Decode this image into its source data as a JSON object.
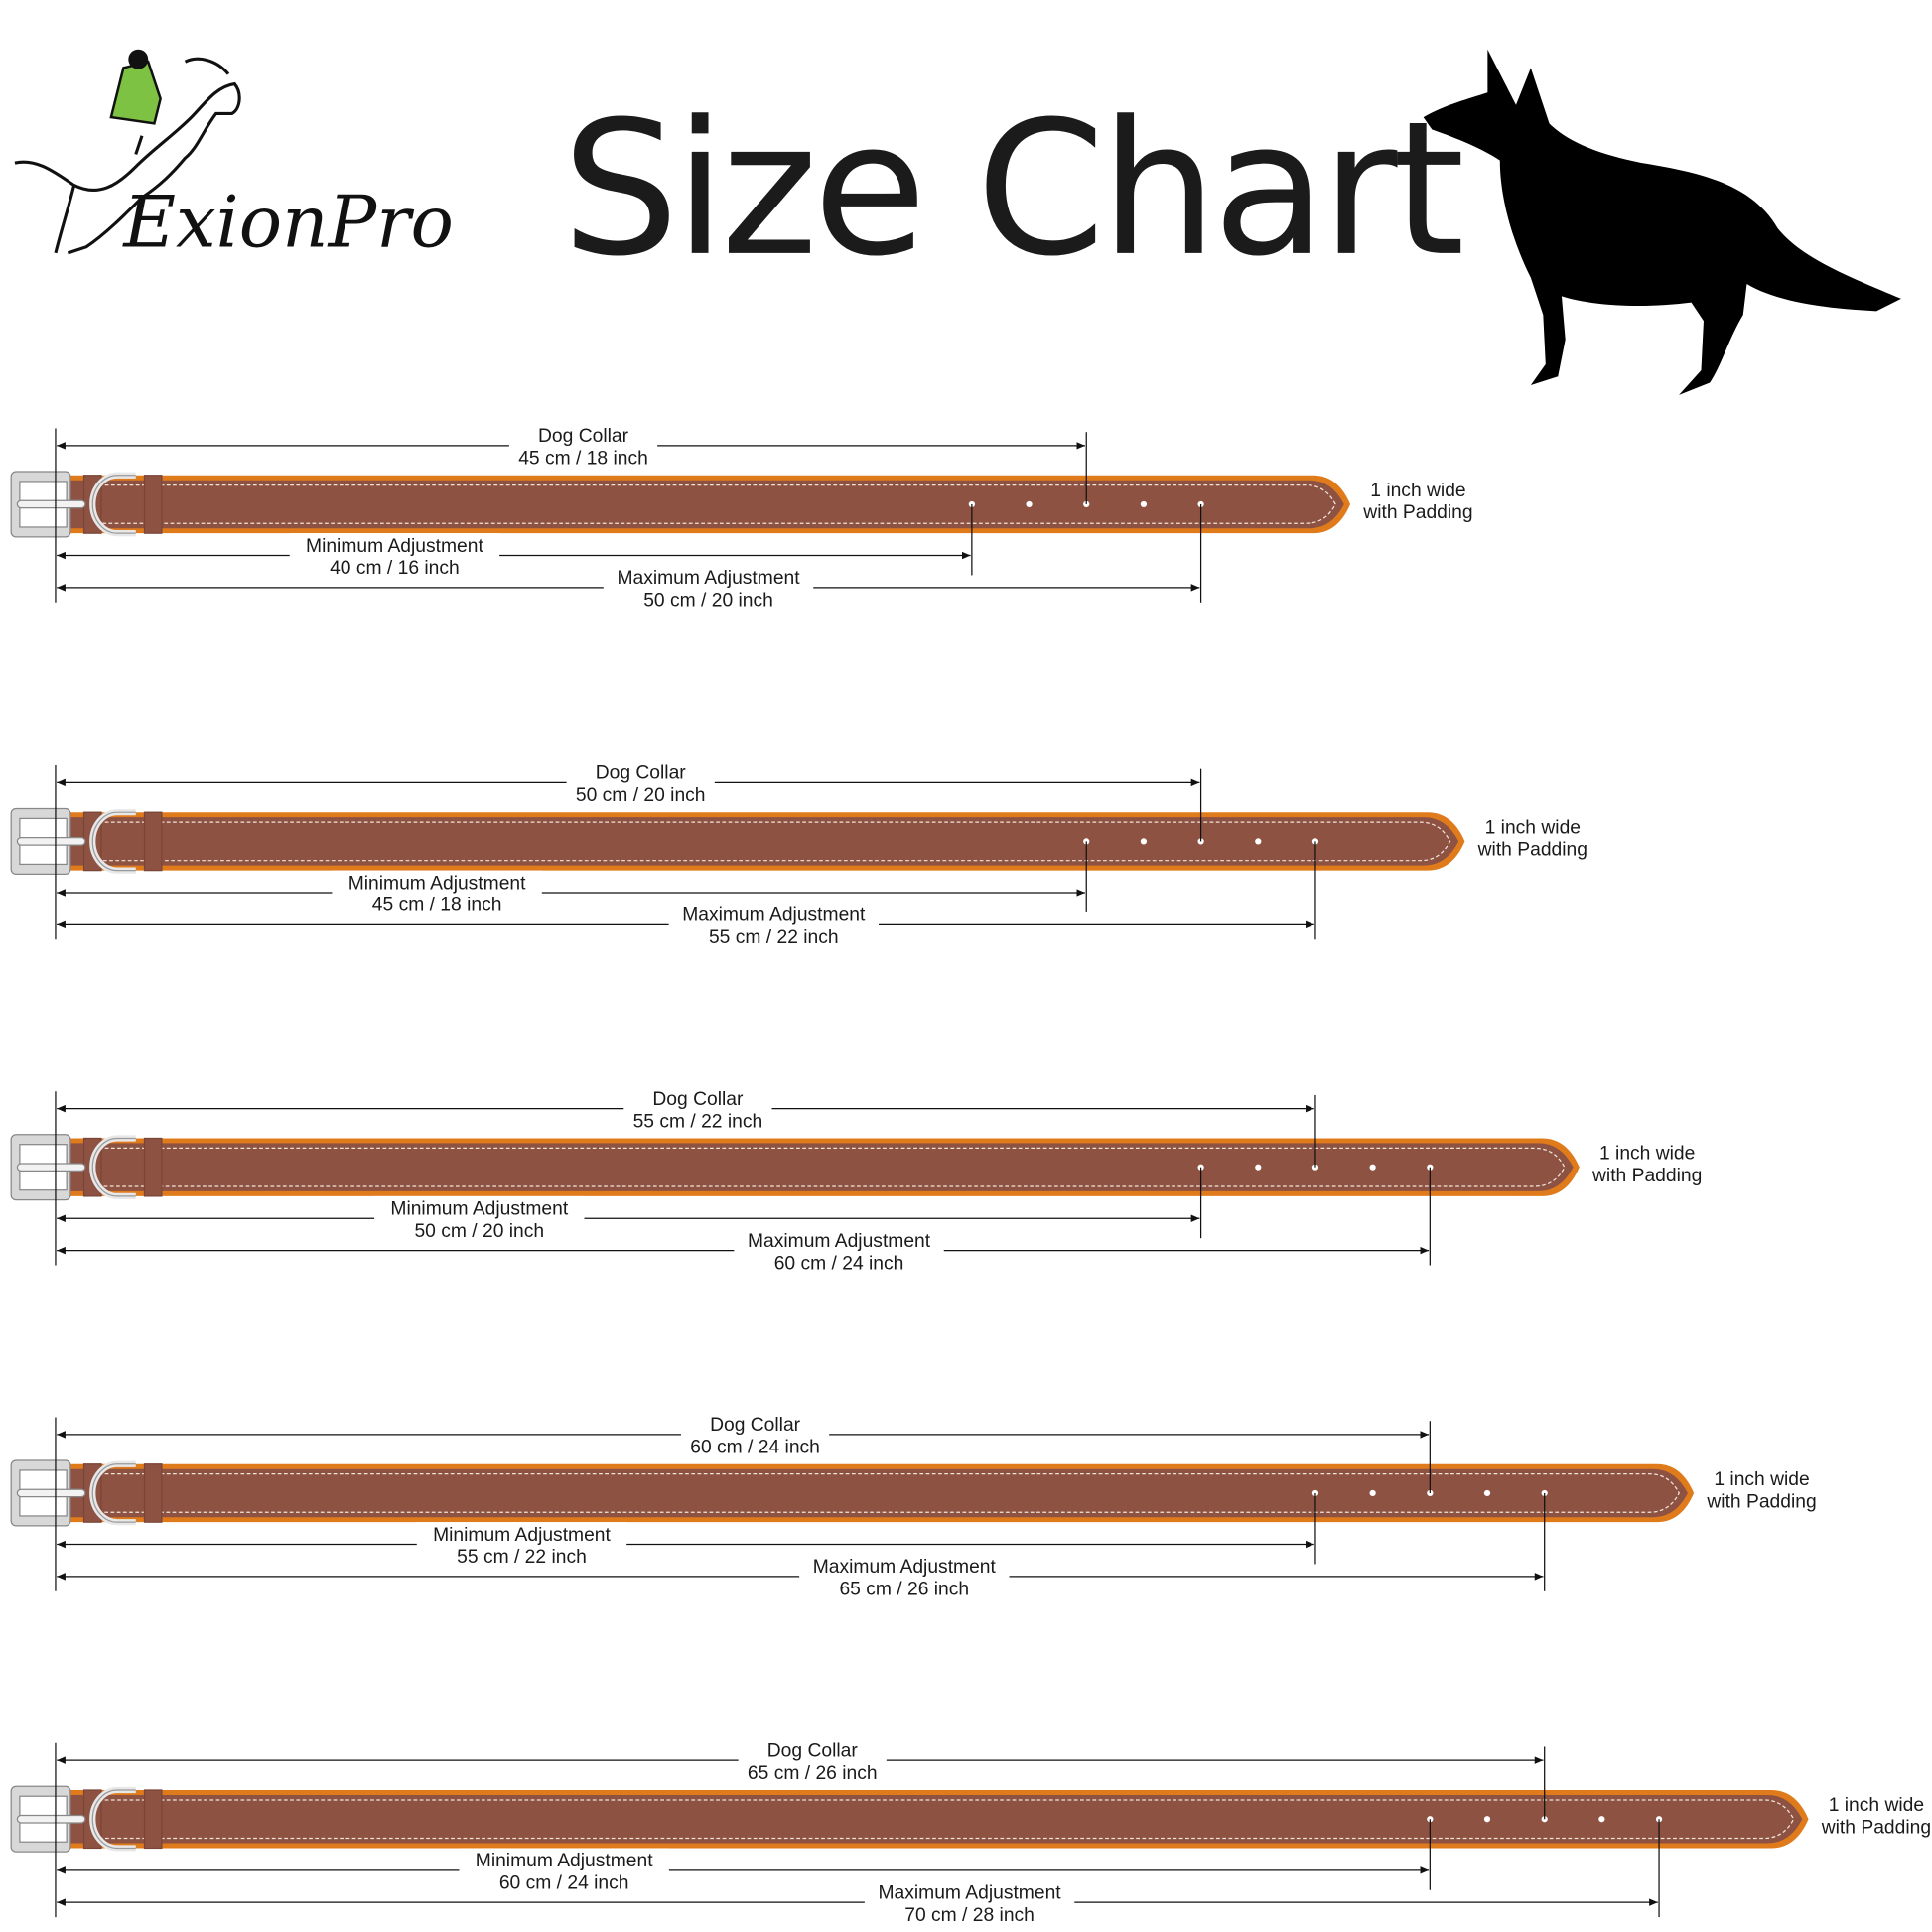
{
  "header": {
    "title": "Size Chart",
    "brand": "ExionPro",
    "brand_accent_color": "#7dc242",
    "dog_icon": "dog-silhouette-icon"
  },
  "colors": {
    "leather": "#8e5242",
    "padding": "#e07b1c",
    "buckle": "#d8d8d8",
    "stitch": "#f2e6dc"
  },
  "collars": [
    {
      "collar_label": "Dog Collar",
      "collar_size": "45 cm / 18 inch",
      "min_label": "Minimum Adjustment",
      "min_size": "40 cm / 16 inch",
      "max_label": "Maximum Adjustment",
      "max_size": "50 cm / 20 inch",
      "width_line1": "1 inch wide",
      "width_line2": "with Padding",
      "collar_cm": 45,
      "min_cm": 40,
      "max_cm": 50
    },
    {
      "collar_label": "Dog Collar",
      "collar_size": "50 cm / 20 inch",
      "min_label": "Minimum Adjustment",
      "min_size": "45 cm / 18 inch",
      "max_label": "Maximum Adjustment",
      "max_size": "55 cm / 22 inch",
      "width_line1": "1 inch wide",
      "width_line2": "with Padding",
      "collar_cm": 50,
      "min_cm": 45,
      "max_cm": 55
    },
    {
      "collar_label": "Dog Collar",
      "collar_size": "55 cm / 22 inch",
      "min_label": "Minimum Adjustment",
      "min_size": "50 cm / 20 inch",
      "max_label": "Maximum Adjustment",
      "max_size": "60 cm / 24 inch",
      "width_line1": "1 inch wide",
      "width_line2": "with Padding",
      "collar_cm": 55,
      "min_cm": 50,
      "max_cm": 60
    },
    {
      "collar_label": "Dog Collar",
      "collar_size": "60 cm / 24 inch",
      "min_label": "Minimum Adjustment",
      "min_size": "55 cm / 22 inch",
      "max_label": "Maximum Adjustment",
      "max_size": "65 cm / 26 inch",
      "width_line1": "1 inch wide",
      "width_line2": "with Padding",
      "collar_cm": 60,
      "min_cm": 55,
      "max_cm": 65
    },
    {
      "collar_label": "Dog Collar",
      "collar_size": "65 cm / 26 inch",
      "min_label": "Minimum Adjustment",
      "min_size": "60 cm / 24 inch",
      "max_label": "Maximum Adjustment",
      "max_size": "70 cm / 28 inch",
      "width_line1": "1 inch wide",
      "width_line2": "with Padding",
      "collar_cm": 65,
      "min_cm": 60,
      "max_cm": 70
    }
  ]
}
